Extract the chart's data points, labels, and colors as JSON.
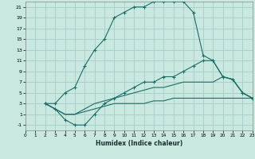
{
  "xlabel": "Humidex (Indice chaleur)",
  "bg_color": "#c8e8e0",
  "grid_color": "#a8ccc8",
  "line_color": "#1a6e66",
  "xlim": [
    0,
    23
  ],
  "ylim": [
    -2,
    22
  ],
  "xticks": [
    0,
    1,
    2,
    3,
    4,
    5,
    6,
    7,
    8,
    9,
    10,
    11,
    12,
    13,
    14,
    15,
    16,
    17,
    18,
    19,
    20,
    21,
    22,
    23
  ],
  "yticks": [
    -1,
    1,
    3,
    5,
    7,
    9,
    11,
    13,
    15,
    17,
    19,
    21
  ],
  "curve1_x": [
    2,
    3,
    4,
    5,
    6,
    7,
    8,
    9,
    10,
    11,
    12,
    13,
    14,
    15,
    16,
    17,
    18,
    19,
    20,
    21,
    22,
    23
  ],
  "curve1_y": [
    3,
    3,
    5,
    6,
    10,
    13,
    15,
    19,
    20,
    21,
    21,
    22,
    22,
    22,
    22,
    20,
    12,
    11,
    8,
    7.5,
    5,
    4
  ],
  "curve2_x": [
    2,
    3,
    4,
    5,
    6,
    7,
    8,
    9,
    10,
    11,
    12,
    13,
    14,
    15,
    16,
    17,
    18,
    19,
    20,
    21,
    22,
    23
  ],
  "curve2_y": [
    3,
    2,
    0,
    -1,
    -1,
    1,
    3,
    4,
    5,
    6,
    7,
    7,
    8,
    8,
    9,
    10,
    11,
    11,
    8,
    7.5,
    5,
    4
  ],
  "curve3_x": [
    2,
    3,
    4,
    5,
    6,
    7,
    8,
    9,
    10,
    11,
    12,
    13,
    14,
    15,
    16,
    17,
    18,
    19,
    20,
    21,
    22,
    23
  ],
  "curve3_y": [
    3,
    2,
    1,
    1,
    2,
    3,
    3.5,
    4,
    4.5,
    5,
    5.5,
    6,
    6,
    6.5,
    7,
    7,
    7,
    7,
    8,
    7.5,
    5,
    4
  ],
  "curve4_x": [
    2,
    3,
    4,
    5,
    6,
    7,
    8,
    9,
    10,
    11,
    12,
    13,
    14,
    15,
    16,
    17,
    18,
    19,
    20,
    21,
    22,
    23
  ],
  "curve4_y": [
    3,
    2,
    1,
    1,
    1.5,
    2,
    2.5,
    3,
    3,
    3,
    3,
    3.5,
    3.5,
    4,
    4,
    4,
    4,
    4,
    4,
    4,
    4,
    4
  ]
}
